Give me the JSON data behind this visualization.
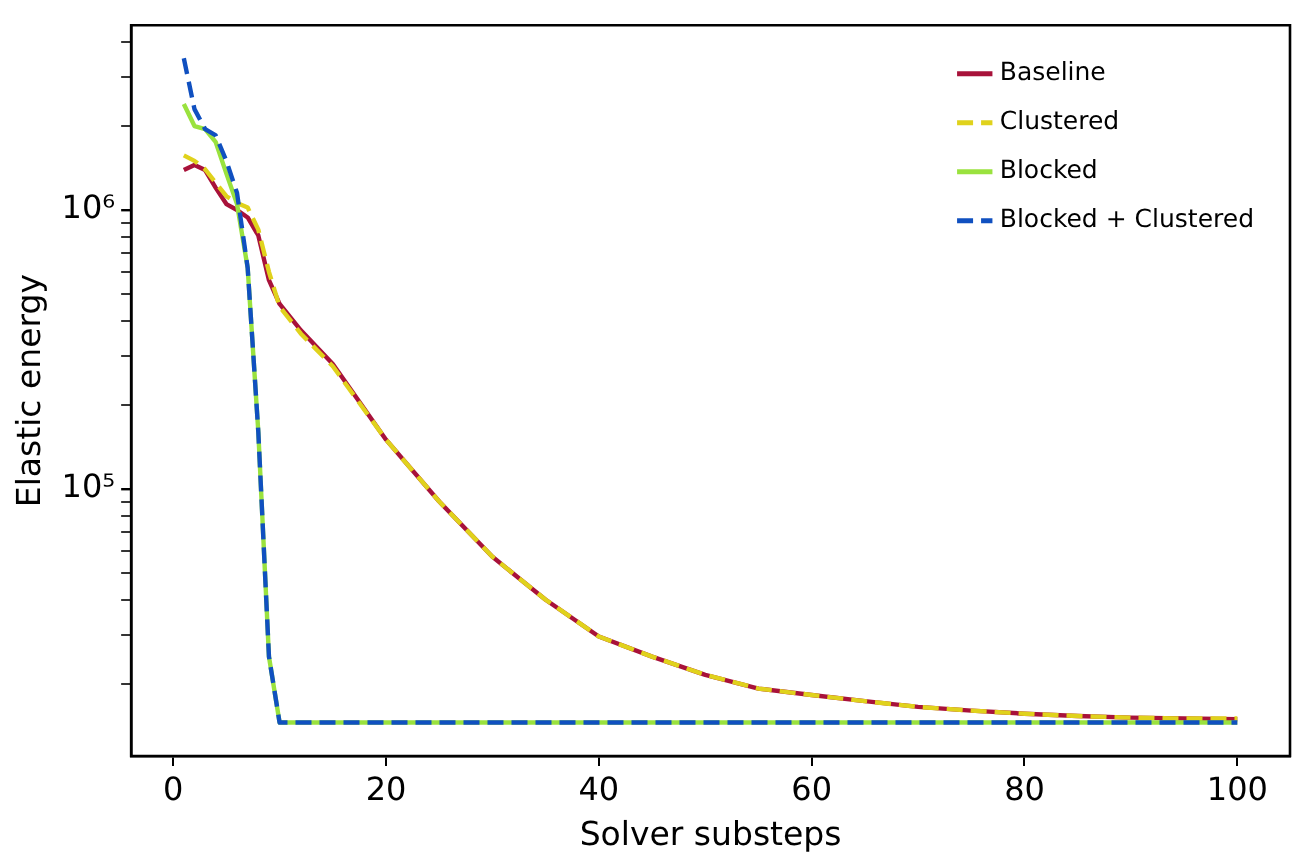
{
  "chart_data": {
    "type": "line",
    "xlabel": "Solver substeps",
    "ylabel": "Elastic energy",
    "log": "y",
    "grid": false,
    "legend": "top right",
    "marker": "none",
    "xlim": [
      -3.95,
      104.95
    ],
    "xticks": [
      0,
      20,
      40,
      60,
      80,
      100
    ],
    "ylim": [
      11000,
      4600000
    ],
    "yticks": [
      {
        "value": 20000,
        "label": null
      },
      {
        "value": 30000,
        "label": null
      },
      {
        "value": 40000,
        "label": null
      },
      {
        "value": 50000,
        "label": null
      },
      {
        "value": 60000,
        "label": null
      },
      {
        "value": 70000,
        "label": null
      },
      {
        "value": 80000,
        "label": null
      },
      {
        "value": 90000,
        "label": null
      },
      {
        "value": 100000,
        "label": "10⁵"
      },
      {
        "value": 200000,
        "label": null
      },
      {
        "value": 300000,
        "label": null
      },
      {
        "value": 400000,
        "label": null
      },
      {
        "value": 500000,
        "label": null
      },
      {
        "value": 600000,
        "label": null
      },
      {
        "value": 700000,
        "label": null
      },
      {
        "value": 800000,
        "label": null
      },
      {
        "value": 900000,
        "label": null
      },
      {
        "value": 1000000,
        "label": "10⁶"
      },
      {
        "value": 2000000,
        "label": null
      },
      {
        "value": 3000000,
        "label": null
      },
      {
        "value": 4000000,
        "label": null
      }
    ],
    "series": [
      {
        "name": "Baseline",
        "color": "#a8123a",
        "line_style": "solid",
        "x": [
          1,
          2,
          3,
          4,
          5,
          6,
          7,
          8,
          9,
          10,
          12,
          15,
          20,
          25,
          30,
          35,
          40,
          45,
          50,
          55,
          60,
          65,
          70,
          75,
          80,
          85,
          90,
          95,
          100
        ],
        "values": [
          1390000,
          1450000,
          1390000,
          1200000,
          1050000,
          1000000,
          940000,
          810000,
          560000,
          460000,
          370000,
          280000,
          150000,
          90000,
          57000,
          40000,
          29500,
          25000,
          21500,
          19200,
          18200,
          17300,
          16500,
          16000,
          15600,
          15300,
          15100,
          15000,
          14900
        ]
      },
      {
        "name": "Clustered",
        "color": "#e0d21c",
        "line_style": "dashed",
        "x": [
          1,
          2,
          3,
          4,
          5,
          6,
          7,
          8,
          9,
          10,
          12,
          15,
          20,
          25,
          30,
          35,
          40,
          45,
          50,
          55,
          60,
          65,
          70,
          75,
          80,
          85,
          90,
          95,
          100
        ],
        "values": [
          1570000,
          1500000,
          1400000,
          1250000,
          1120000,
          1060000,
          1020000,
          850000,
          600000,
          450000,
          360000,
          275000,
          150000,
          90000,
          57000,
          40000,
          29500,
          25000,
          21500,
          19200,
          18200,
          17300,
          16500,
          16000,
          15600,
          15300,
          15100,
          15000,
          15000
        ]
      },
      {
        "name": "Blocked",
        "color": "#9ae23e",
        "line_style": "solid",
        "x": [
          1,
          2,
          3,
          4,
          5,
          6,
          7,
          8,
          9,
          10,
          20,
          40,
          60,
          80,
          100
        ],
        "values": [
          2400000,
          2000000,
          1950000,
          1750000,
          1350000,
          1050000,
          620000,
          160000,
          25000,
          14500,
          14500,
          14500,
          14500,
          14500,
          14500
        ]
      },
      {
        "name": "Blocked + Clustered",
        "color": "#1050c0",
        "line_style": "dashed",
        "x": [
          1,
          2,
          3,
          4,
          5,
          6,
          7,
          8,
          9,
          10,
          20,
          40,
          60,
          80,
          100
        ],
        "values": [
          3500000,
          2300000,
          1950000,
          1850000,
          1500000,
          1150000,
          620000,
          160000,
          25000,
          14500,
          14500,
          14500,
          14500,
          14500,
          14500
        ]
      }
    ]
  }
}
